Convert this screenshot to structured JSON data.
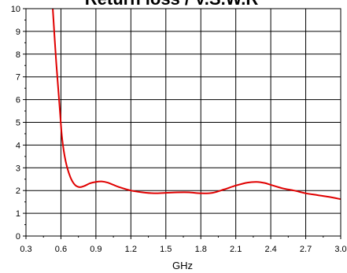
{
  "chart_data": {
    "type": "line",
    "title": "Return loss / V.S.W.R",
    "xlabel": "GHz",
    "ylabel": "",
    "xlim": [
      0.3,
      3.0
    ],
    "ylim": [
      0,
      10
    ],
    "x_ticks": [
      "0.3",
      "0.6",
      "0.9",
      "1.2",
      "1.5",
      "1.8",
      "2.1",
      "2.4",
      "2.7",
      "3.0"
    ],
    "y_ticks": [
      "0",
      "1",
      "2",
      "3",
      "4",
      "5",
      "6",
      "7",
      "8",
      "9",
      "10"
    ],
    "grid": true,
    "legend": "none",
    "series": [
      {
        "color": "#e00000",
        "x": [
          0.53,
          0.56,
          0.59,
          0.61,
          0.64,
          0.68,
          0.72,
          0.76,
          0.8,
          0.85,
          0.9,
          0.95,
          1.0,
          1.05,
          1.1,
          1.2,
          1.3,
          1.4,
          1.5,
          1.6,
          1.7,
          1.8,
          1.9,
          2.0,
          2.1,
          2.2,
          2.28,
          2.35,
          2.4,
          2.5,
          2.6,
          2.7,
          2.8,
          2.9,
          3.0
        ],
        "y": [
          10.0,
          7.6,
          5.6,
          4.3,
          3.3,
          2.6,
          2.25,
          2.15,
          2.2,
          2.32,
          2.38,
          2.4,
          2.35,
          2.25,
          2.15,
          2.0,
          1.92,
          1.88,
          1.9,
          1.92,
          1.92,
          1.88,
          1.9,
          2.05,
          2.22,
          2.35,
          2.38,
          2.33,
          2.25,
          2.1,
          2.0,
          1.88,
          1.8,
          1.72,
          1.62
        ]
      }
    ]
  }
}
